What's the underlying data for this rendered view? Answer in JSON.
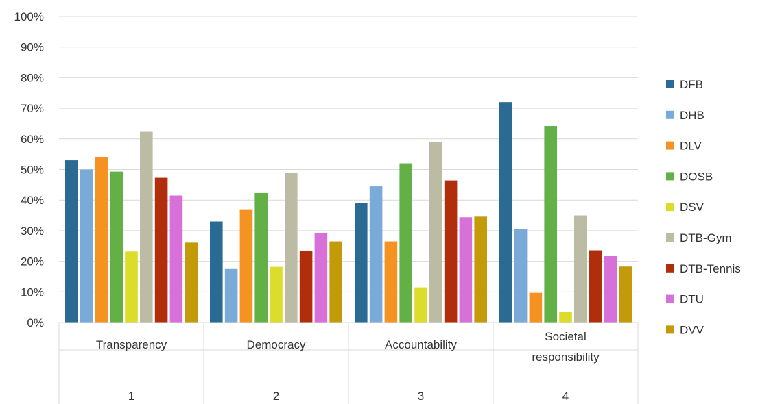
{
  "chart_data": {
    "type": "bar",
    "categories": [
      {
        "label_lines": [
          "Transparency"
        ],
        "number": "1"
      },
      {
        "label_lines": [
          "Democracy"
        ],
        "number": "2"
      },
      {
        "label_lines": [
          "Accountability"
        ],
        "number": "3"
      },
      {
        "label_lines": [
          "Societal",
          "responsibility"
        ],
        "number": "4"
      }
    ],
    "series": [
      {
        "name": "DFB",
        "color": "#2b6a93",
        "values": [
          53,
          33,
          39,
          72
        ]
      },
      {
        "name": "DHB",
        "color": "#7aaad7",
        "values": [
          50,
          17.5,
          44.5,
          30.5
        ]
      },
      {
        "name": "DLV",
        "color": "#f59322",
        "values": [
          54,
          37,
          26.5,
          9.7
        ]
      },
      {
        "name": "DOSB",
        "color": "#62b046",
        "values": [
          49.3,
          42.3,
          52,
          64.2
        ]
      },
      {
        "name": "DSV",
        "color": "#dcdc2a",
        "values": [
          23.2,
          18.2,
          11.5,
          3.5
        ]
      },
      {
        "name": "DTB-Gym",
        "color": "#bcbca4",
        "values": [
          62.3,
          49,
          59,
          35
        ]
      },
      {
        "name": "DTB-Tennis",
        "color": "#b02e0c",
        "values": [
          47.3,
          23.5,
          46.4,
          23.6
        ]
      },
      {
        "name": "DTU",
        "color": "#d870da",
        "values": [
          41.5,
          29.2,
          34.4,
          21.7
        ]
      },
      {
        "name": "DVV",
        "color": "#c29a0a",
        "values": [
          26.1,
          26.5,
          34.6,
          18.3
        ]
      }
    ],
    "y_ticks": [
      "0%",
      "10%",
      "20%",
      "30%",
      "40%",
      "50%",
      "60%",
      "70%",
      "80%",
      "90%",
      "100%"
    ],
    "ylim": [
      0,
      100
    ],
    "grid": true,
    "legend_position": "right"
  }
}
